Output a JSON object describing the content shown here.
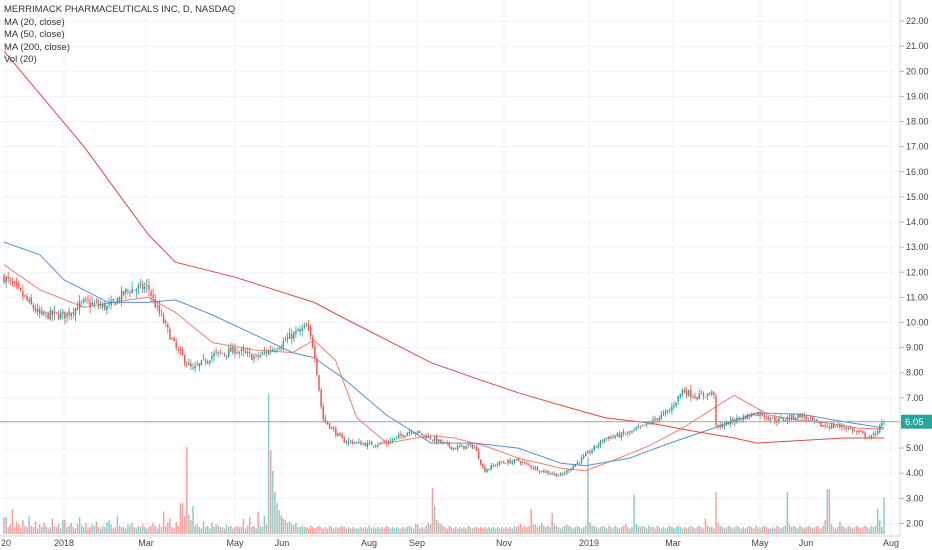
{
  "legend": {
    "title": "MERRIMACK PHARMACEUTICALS INC, D, NASDAQ",
    "items": [
      "MA (20, close)",
      "MA (50, close)",
      "MA (200, close)",
      "Vol (20)"
    ]
  },
  "colors": {
    "up": "#26a69a",
    "down": "#ef5350",
    "ma20": "#f08070",
    "ma50": "#5b8fd6",
    "ma200": "#e04848",
    "price_label_bg": "#26a69a",
    "grid": "#f0f3fa",
    "price_line": "#9e9e9e"
  },
  "chart_data": {
    "type": "candlestick",
    "title": "MERRIMACK PHARMACEUTICALS INC, D, NASDAQ",
    "y_axis": {
      "ylim": [
        1.5,
        22.6
      ],
      "ticks": [
        "2.00",
        "3.00",
        "4.00",
        "5.00",
        "6.00",
        "7.00",
        "8.00",
        "9.00",
        "10.00",
        "11.00",
        "12.00",
        "13.00",
        "14.00",
        "15.00",
        "16.00",
        "17.00",
        "18.00",
        "19.00",
        "20.00",
        "21.00",
        "22.00"
      ],
      "scale": "linear",
      "position": "right"
    },
    "x_axis": {
      "tick_labels": [
        "20",
        "2018",
        "Mar",
        "May",
        "Jun",
        "Aug",
        "Sep",
        "Nov",
        "2019",
        "Mar",
        "May",
        "Jun",
        "Aug"
      ]
    },
    "last_price": "6.05",
    "grid": true,
    "close_series": {
      "dates": [
        "2017-11-20",
        "2017-12-01",
        "2017-12-15",
        "2018-01-02",
        "2018-01-15",
        "2018-02-01",
        "2018-02-15",
        "2018-03-01",
        "2018-03-05",
        "2018-03-12",
        "2018-03-20",
        "2018-04-01",
        "2018-04-15",
        "2018-05-01",
        "2018-05-15",
        "2018-06-01",
        "2018-06-10",
        "2018-06-20",
        "2018-06-25",
        "2018-07-01",
        "2018-07-15",
        "2018-08-01",
        "2018-08-15",
        "2018-09-01",
        "2018-09-15",
        "2018-10-01",
        "2018-10-15",
        "2018-10-22",
        "2018-11-01",
        "2018-11-15",
        "2018-12-01",
        "2018-12-15",
        "2019-01-01",
        "2019-01-15",
        "2019-02-01",
        "2019-02-15",
        "2019-03-01",
        "2019-03-10",
        "2019-03-20",
        "2019-04-01",
        "2019-04-02",
        "2019-04-15",
        "2019-05-01",
        "2019-05-15",
        "2019-06-01",
        "2019-06-15",
        "2019-07-01",
        "2019-07-20",
        "2019-07-29"
      ],
      "values": [
        11.8,
        11.2,
        10.3,
        10.3,
        10.8,
        10.6,
        11.3,
        11.4,
        10.8,
        10.0,
        9.0,
        8.1,
        8.7,
        8.9,
        8.6,
        9.1,
        9.5,
        9.8,
        9.0,
        6.2,
        5.3,
        5.15,
        5.2,
        5.7,
        5.4,
        5.0,
        5.1,
        4.1,
        4.4,
        4.5,
        4.1,
        3.9,
        4.7,
        5.4,
        5.6,
        6.0,
        6.5,
        7.3,
        7.05,
        7.2,
        5.8,
        6.1,
        6.4,
        6.1,
        6.3,
        5.9,
        5.85,
        5.4,
        6.05
      ]
    },
    "series": [
      {
        "name": "MA (20, close)",
        "dates": [
          "2017-11-20",
          "2017-12-15",
          "2018-01-15",
          "2018-02-15",
          "2018-03-01",
          "2018-03-20",
          "2018-04-15",
          "2018-05-15",
          "2018-06-10",
          "2018-06-25",
          "2018-07-10",
          "2018-07-25",
          "2018-08-15",
          "2018-09-15",
          "2018-10-01",
          "2018-10-22",
          "2018-11-15",
          "2018-12-15",
          "2019-01-01",
          "2019-01-20",
          "2019-02-15",
          "2019-03-10",
          "2019-04-01",
          "2019-04-15",
          "2019-05-10",
          "2019-06-01",
          "2019-06-20",
          "2019-07-10",
          "2019-07-29"
        ],
        "values": [
          12.3,
          11.3,
          10.6,
          10.9,
          11.0,
          10.4,
          9.2,
          8.9,
          8.8,
          9.3,
          8.5,
          6.2,
          5.2,
          5.5,
          5.4,
          5.1,
          4.6,
          4.2,
          4.1,
          4.5,
          5.1,
          5.8,
          6.6,
          7.1,
          6.3,
          6.1,
          6.0,
          5.8,
          5.75
        ]
      },
      {
        "name": "MA (50, close)",
        "dates": [
          "2017-11-20",
          "2017-12-15",
          "2018-01-01",
          "2018-02-01",
          "2018-03-01",
          "2018-03-20",
          "2018-04-15",
          "2018-05-15",
          "2018-06-10",
          "2018-06-25",
          "2018-07-15",
          "2018-08-15",
          "2018-09-15",
          "2018-10-15",
          "2018-11-15",
          "2018-12-15",
          "2019-01-01",
          "2019-02-01",
          "2019-03-01",
          "2019-04-01",
          "2019-05-01",
          "2019-06-01",
          "2019-07-01",
          "2019-07-29"
        ],
        "values": [
          13.2,
          12.7,
          11.7,
          10.8,
          10.8,
          10.9,
          10.3,
          9.5,
          8.8,
          8.6,
          7.8,
          6.3,
          5.2,
          5.2,
          5.0,
          4.4,
          4.3,
          4.6,
          5.2,
          5.8,
          6.4,
          6.35,
          6.05,
          5.8
        ]
      },
      {
        "name": "MA (200, close)",
        "dates": [
          "2017-11-20",
          "2018-01-15",
          "2018-03-01",
          "2018-03-20",
          "2018-05-01",
          "2018-06-25",
          "2018-07-15",
          "2018-08-15",
          "2018-09-15",
          "2018-10-15",
          "2018-11-15",
          "2018-12-15",
          "2019-01-15",
          "2019-02-15",
          "2019-03-15",
          "2019-04-15",
          "2019-05-01",
          "2019-06-01",
          "2019-07-01",
          "2019-07-29"
        ],
        "values": [
          20.8,
          17.0,
          13.5,
          12.4,
          11.8,
          10.8,
          10.2,
          9.3,
          8.4,
          7.8,
          7.2,
          6.7,
          6.2,
          6.0,
          5.7,
          5.4,
          5.2,
          5.3,
          5.4,
          5.4
        ]
      }
    ],
    "volume": {
      "series_name": "Vol (20)",
      "unit": "relative",
      "values": [
        0.12,
        0.05,
        0.07,
        0.18,
        0.05,
        0.09,
        0.07,
        0.04,
        0.1,
        0.06,
        0.05,
        0.13,
        0.06,
        0.05,
        0.09,
        0.04,
        0.07,
        0.05,
        0.08,
        0.06,
        0.04,
        0.05,
        0.11,
        0.06,
        0.05,
        0.07,
        0.04,
        0.1,
        0.05,
        0.06,
        0.08,
        0.05,
        0.04,
        0.07,
        0.12,
        0.06,
        0.05,
        0.08,
        0.04,
        0.05,
        0.07,
        0.06,
        0.09,
        0.05,
        0.04,
        0.06,
        0.05,
        0.08,
        0.1,
        0.07,
        0.04,
        0.05,
        0.13,
        0.06,
        0.05,
        0.04,
        0.07,
        0.06,
        0.08,
        0.05,
        0.04,
        0.06,
        0.05,
        0.07,
        0.05,
        0.04,
        0.05,
        0.06,
        0.08,
        0.06,
        0.04,
        0.07,
        0.05,
        0.16,
        0.06,
        0.08,
        0.11,
        0.05,
        0.04,
        0.09,
        0.06,
        0.22,
        0.13,
        0.62,
        0.14,
        0.1,
        0.2,
        0.06,
        0.07,
        0.05,
        0.04,
        0.09,
        0.05,
        0.06,
        0.04,
        0.08,
        0.05,
        0.07,
        0.06,
        0.05,
        0.05,
        0.04,
        0.07,
        0.05,
        0.06,
        0.04,
        0.05,
        0.06,
        0.05,
        0.11,
        0.04,
        0.06,
        0.12,
        0.05,
        0.06,
        0.04,
        0.16,
        0.06,
        0.05,
        0.13,
        0.07,
        1.0,
        0.6,
        0.45,
        0.3,
        0.22,
        0.17,
        0.13,
        0.11,
        0.1,
        0.08,
        0.09,
        0.07,
        0.06,
        0.08,
        0.05,
        0.06,
        0.05,
        0.05,
        0.04,
        0.06,
        0.05,
        0.04,
        0.05,
        0.06,
        0.05,
        0.04,
        0.05,
        0.04,
        0.06,
        0.05,
        0.04,
        0.05,
        0.04,
        0.05,
        0.06,
        0.05,
        0.04,
        0.05,
        0.04,
        0.05,
        0.04,
        0.04,
        0.05,
        0.04,
        0.05,
        0.04,
        0.06,
        0.04,
        0.05,
        0.04,
        0.05,
        0.04,
        0.05,
        0.04,
        0.06,
        0.05,
        0.04,
        0.05,
        0.04,
        0.05,
        0.04,
        0.04,
        0.05,
        0.04,
        0.05,
        0.06,
        0.05,
        0.04,
        0.07,
        0.04,
        0.05,
        0.04,
        0.06,
        0.08,
        0.07,
        0.33,
        0.2,
        0.1,
        0.08,
        0.07,
        0.06,
        0.05,
        0.04,
        0.06,
        0.05,
        0.04,
        0.05,
        0.04,
        0.05,
        0.04,
        0.05,
        0.04,
        0.06,
        0.05,
        0.04,
        0.05,
        0.04,
        0.05,
        0.04,
        0.05,
        0.04,
        0.05,
        0.04,
        0.05,
        0.04,
        0.05,
        0.04,
        0.05,
        0.04,
        0.05,
        0.04,
        0.05,
        0.04,
        0.06,
        0.05,
        0.06,
        0.07,
        0.05,
        0.06,
        0.05,
        0.06,
        0.18,
        0.07,
        0.05,
        0.06,
        0.08,
        0.06,
        0.05,
        0.06,
        0.05,
        0.15,
        0.07,
        0.06,
        0.05,
        0.04,
        0.05,
        0.06,
        0.07,
        0.06,
        0.05,
        0.04,
        0.05,
        0.06,
        0.05,
        0.04,
        0.05,
        0.06,
        0.55,
        0.08,
        0.06,
        0.05,
        0.04,
        0.05,
        0.06,
        0.05,
        0.04,
        0.06,
        0.05,
        0.04,
        0.06,
        0.05,
        0.04,
        0.05,
        0.06,
        0.07,
        0.05,
        0.04,
        0.05,
        0.28,
        0.07,
        0.06,
        0.05,
        0.06,
        0.05,
        0.04,
        0.06,
        0.05,
        0.04,
        0.06,
        0.05,
        0.04,
        0.05,
        0.04,
        0.05,
        0.06,
        0.05,
        0.04,
        0.05,
        0.06,
        0.05,
        0.04,
        0.05,
        0.04,
        0.05,
        0.06,
        0.05,
        0.04,
        0.05,
        0.06,
        0.05,
        0.04,
        0.11,
        0.06,
        0.05,
        0.04,
        0.3,
        0.08,
        0.06,
        0.05,
        0.04,
        0.05,
        0.06,
        0.05,
        0.04,
        0.05,
        0.06,
        0.05,
        0.04,
        0.05,
        0.04,
        0.05,
        0.06,
        0.05,
        0.04,
        0.06,
        0.05,
        0.04,
        0.05,
        0.06,
        0.05,
        0.04,
        0.05,
        0.04,
        0.06,
        0.05,
        0.04,
        0.05,
        0.06,
        0.3,
        0.07,
        0.05,
        0.06,
        0.05,
        0.04,
        0.06,
        0.05,
        0.04,
        0.05,
        0.06,
        0.05,
        0.04,
        0.05,
        0.06,
        0.05,
        0.04,
        0.06,
        0.1,
        0.32,
        0.07,
        0.05,
        0.04,
        0.05,
        0.09,
        0.06,
        0.05,
        0.04,
        0.06,
        0.05,
        0.04,
        0.05,
        0.06,
        0.05,
        0.04,
        0.05,
        0.06,
        0.05,
        0.04,
        0.06,
        0.05,
        0.06,
        0.18,
        0.1,
        0.05,
        0.26
      ]
    }
  }
}
